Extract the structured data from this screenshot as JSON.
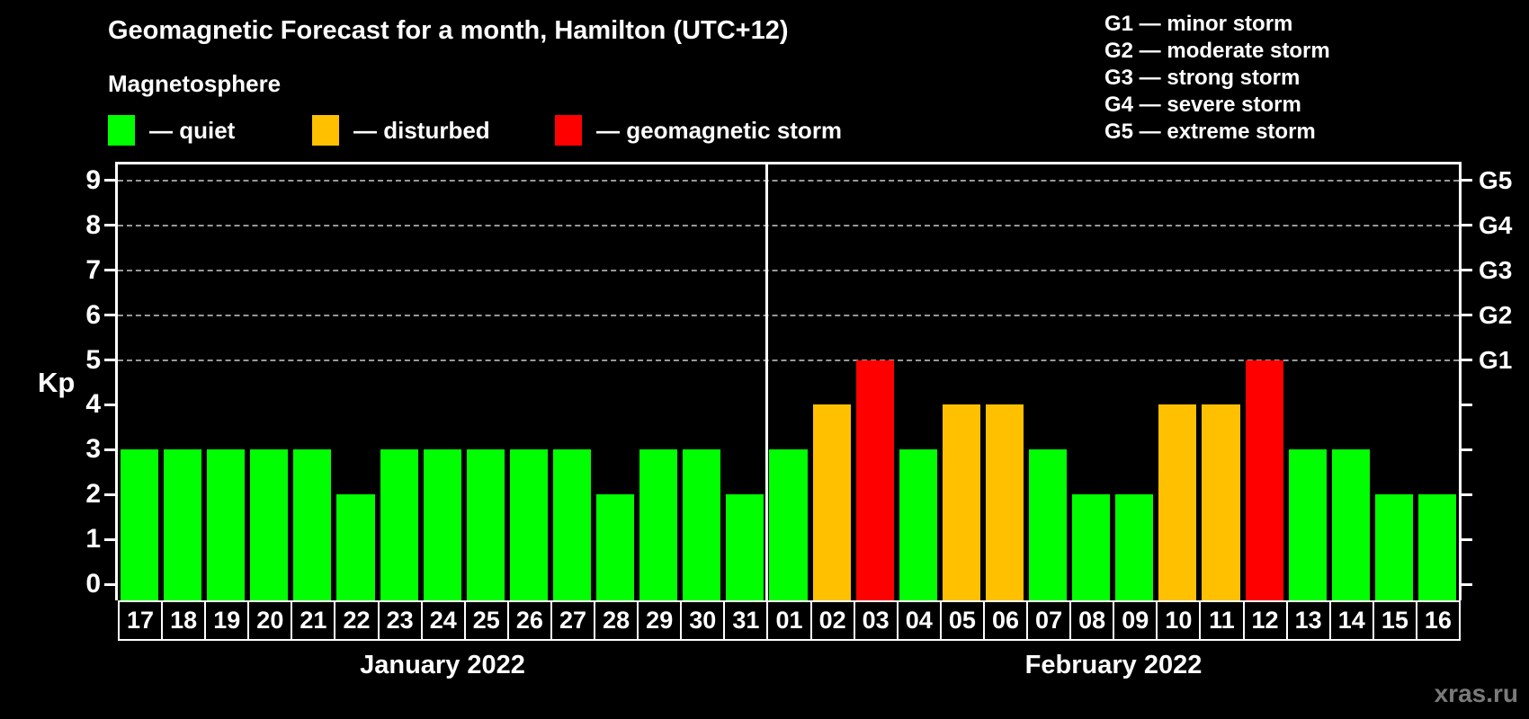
{
  "title": "Geomagnetic Forecast for a month, Hamilton (UTC+12)",
  "subtitle": "Magnetosphere",
  "magnetosphere_legend": [
    {
      "label": "— quiet",
      "status": "quiet",
      "color": "#00ff00"
    },
    {
      "label": "— disturbed",
      "status": "disturbed",
      "color": "#ffc000"
    },
    {
      "label": "— geomagnetic storm",
      "status": "storm",
      "color": "#ff0000"
    }
  ],
  "g_scale_legend": [
    "G1 — minor storm",
    "G2 — moderate storm",
    "G3 — strong storm",
    "G4 — severe storm",
    "G5 — extreme storm"
  ],
  "watermark": "xras.ru",
  "colors": {
    "background": "#000000",
    "text": "#ffffff",
    "axis": "#ffffff",
    "grid": "#999999",
    "quiet": "#00ff00",
    "disturbed": "#ffc000",
    "storm": "#ff0000",
    "watermark": "#7a7a7a"
  },
  "chart_data": {
    "type": "bar",
    "title": "Geomagnetic Forecast for a month, Hamilton (UTC+12)",
    "ylabel": "Kp",
    "ylim": [
      0,
      9
    ],
    "y_ticks": [
      0,
      1,
      2,
      3,
      4,
      5,
      6,
      7,
      8,
      9
    ],
    "gridlines_at": [
      5,
      6,
      7,
      8,
      9
    ],
    "grid": "dashed",
    "legend_position": "top",
    "right_axis": [
      {
        "value": 5,
        "label": "G1"
      },
      {
        "value": 6,
        "label": "G2"
      },
      {
        "value": 7,
        "label": "G3"
      },
      {
        "value": 8,
        "label": "G4"
      },
      {
        "value": 9,
        "label": "G5"
      }
    ],
    "months": [
      {
        "label": "January 2022",
        "days": 15
      },
      {
        "label": "February 2022",
        "days": 16
      }
    ],
    "bars": [
      {
        "month": "January 2022",
        "day": "17",
        "kp": 3,
        "status": "quiet"
      },
      {
        "month": "January 2022",
        "day": "18",
        "kp": 3,
        "status": "quiet"
      },
      {
        "month": "January 2022",
        "day": "19",
        "kp": 3,
        "status": "quiet"
      },
      {
        "month": "January 2022",
        "day": "20",
        "kp": 3,
        "status": "quiet"
      },
      {
        "month": "January 2022",
        "day": "21",
        "kp": 3,
        "status": "quiet"
      },
      {
        "month": "January 2022",
        "day": "22",
        "kp": 2,
        "status": "quiet"
      },
      {
        "month": "January 2022",
        "day": "23",
        "kp": 3,
        "status": "quiet"
      },
      {
        "month": "January 2022",
        "day": "24",
        "kp": 3,
        "status": "quiet"
      },
      {
        "month": "January 2022",
        "day": "25",
        "kp": 3,
        "status": "quiet"
      },
      {
        "month": "January 2022",
        "day": "26",
        "kp": 3,
        "status": "quiet"
      },
      {
        "month": "January 2022",
        "day": "27",
        "kp": 3,
        "status": "quiet"
      },
      {
        "month": "January 2022",
        "day": "28",
        "kp": 2,
        "status": "quiet"
      },
      {
        "month": "January 2022",
        "day": "29",
        "kp": 3,
        "status": "quiet"
      },
      {
        "month": "January 2022",
        "day": "30",
        "kp": 3,
        "status": "quiet"
      },
      {
        "month": "January 2022",
        "day": "31",
        "kp": 2,
        "status": "quiet"
      },
      {
        "month": "February 2022",
        "day": "01",
        "kp": 3,
        "status": "quiet"
      },
      {
        "month": "February 2022",
        "day": "02",
        "kp": 4,
        "status": "disturbed"
      },
      {
        "month": "February 2022",
        "day": "03",
        "kp": 5,
        "status": "storm"
      },
      {
        "month": "February 2022",
        "day": "04",
        "kp": 3,
        "status": "quiet"
      },
      {
        "month": "February 2022",
        "day": "05",
        "kp": 4,
        "status": "disturbed"
      },
      {
        "month": "February 2022",
        "day": "06",
        "kp": 4,
        "status": "disturbed"
      },
      {
        "month": "February 2022",
        "day": "07",
        "kp": 3,
        "status": "quiet"
      },
      {
        "month": "February 2022",
        "day": "08",
        "kp": 2,
        "status": "quiet"
      },
      {
        "month": "February 2022",
        "day": "09",
        "kp": 2,
        "status": "quiet"
      },
      {
        "month": "February 2022",
        "day": "10",
        "kp": 4,
        "status": "disturbed"
      },
      {
        "month": "February 2022",
        "day": "11",
        "kp": 4,
        "status": "disturbed"
      },
      {
        "month": "February 2022",
        "day": "12",
        "kp": 5,
        "status": "storm"
      },
      {
        "month": "February 2022",
        "day": "13",
        "kp": 3,
        "status": "quiet"
      },
      {
        "month": "February 2022",
        "day": "14",
        "kp": 3,
        "status": "quiet"
      },
      {
        "month": "February 2022",
        "day": "15",
        "kp": 2,
        "status": "quiet"
      },
      {
        "month": "February 2022",
        "day": "16",
        "kp": 2,
        "status": "quiet"
      }
    ]
  }
}
